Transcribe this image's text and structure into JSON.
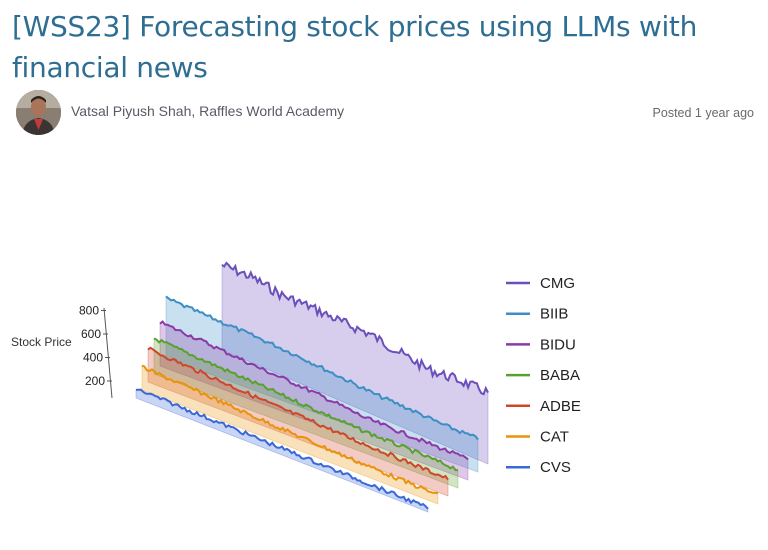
{
  "post": {
    "title": "[WSS23] Forecasting stock prices using LLMs with financial news",
    "author": "Vatsal Piyush Shah, Raffles World Academy",
    "posted": "Posted 1 year ago"
  },
  "chart_data": {
    "type": "line",
    "subtype": "3d-stacked-area",
    "zlabel": "Stock Price",
    "zticks": [
      200,
      400,
      600,
      800
    ],
    "legend_position": "right",
    "series": [
      {
        "name": "CMG",
        "color": "#6b4fbb",
        "approx_trend": [
          740,
          745,
          700,
          705,
          690,
          690,
          640,
          600,
          620,
          620
        ]
      },
      {
        "name": "BIIB",
        "color": "#3b8fc4",
        "approx_trend": [
          520,
          500,
          480,
          460,
          430,
          390,
          350,
          330,
          300,
          290
        ]
      },
      {
        "name": "BIDU",
        "color": "#8b3aa8",
        "approx_trend": [
          380,
          360,
          330,
          300,
          280,
          250,
          210,
          200,
          190,
          180
        ]
      },
      {
        "name": "BABA",
        "color": "#5aa02c",
        "approx_trend": [
          310,
          290,
          270,
          250,
          230,
          210,
          190,
          180,
          170,
          160
        ]
      },
      {
        "name": "ADBE",
        "color": "#d0462a",
        "approx_trend": [
          290,
          270,
          250,
          230,
          210,
          200,
          180,
          170,
          160,
          150
        ]
      },
      {
        "name": "CAT",
        "color": "#e8930a",
        "approx_trend": [
          200,
          185,
          170,
          150,
          135,
          120,
          105,
          95,
          85,
          80
        ]
      },
      {
        "name": "CVS",
        "color": "#3a68d8",
        "approx_trend": [
          80,
          75,
          70,
          65,
          60,
          55,
          50,
          45,
          40,
          35
        ]
      }
    ]
  }
}
